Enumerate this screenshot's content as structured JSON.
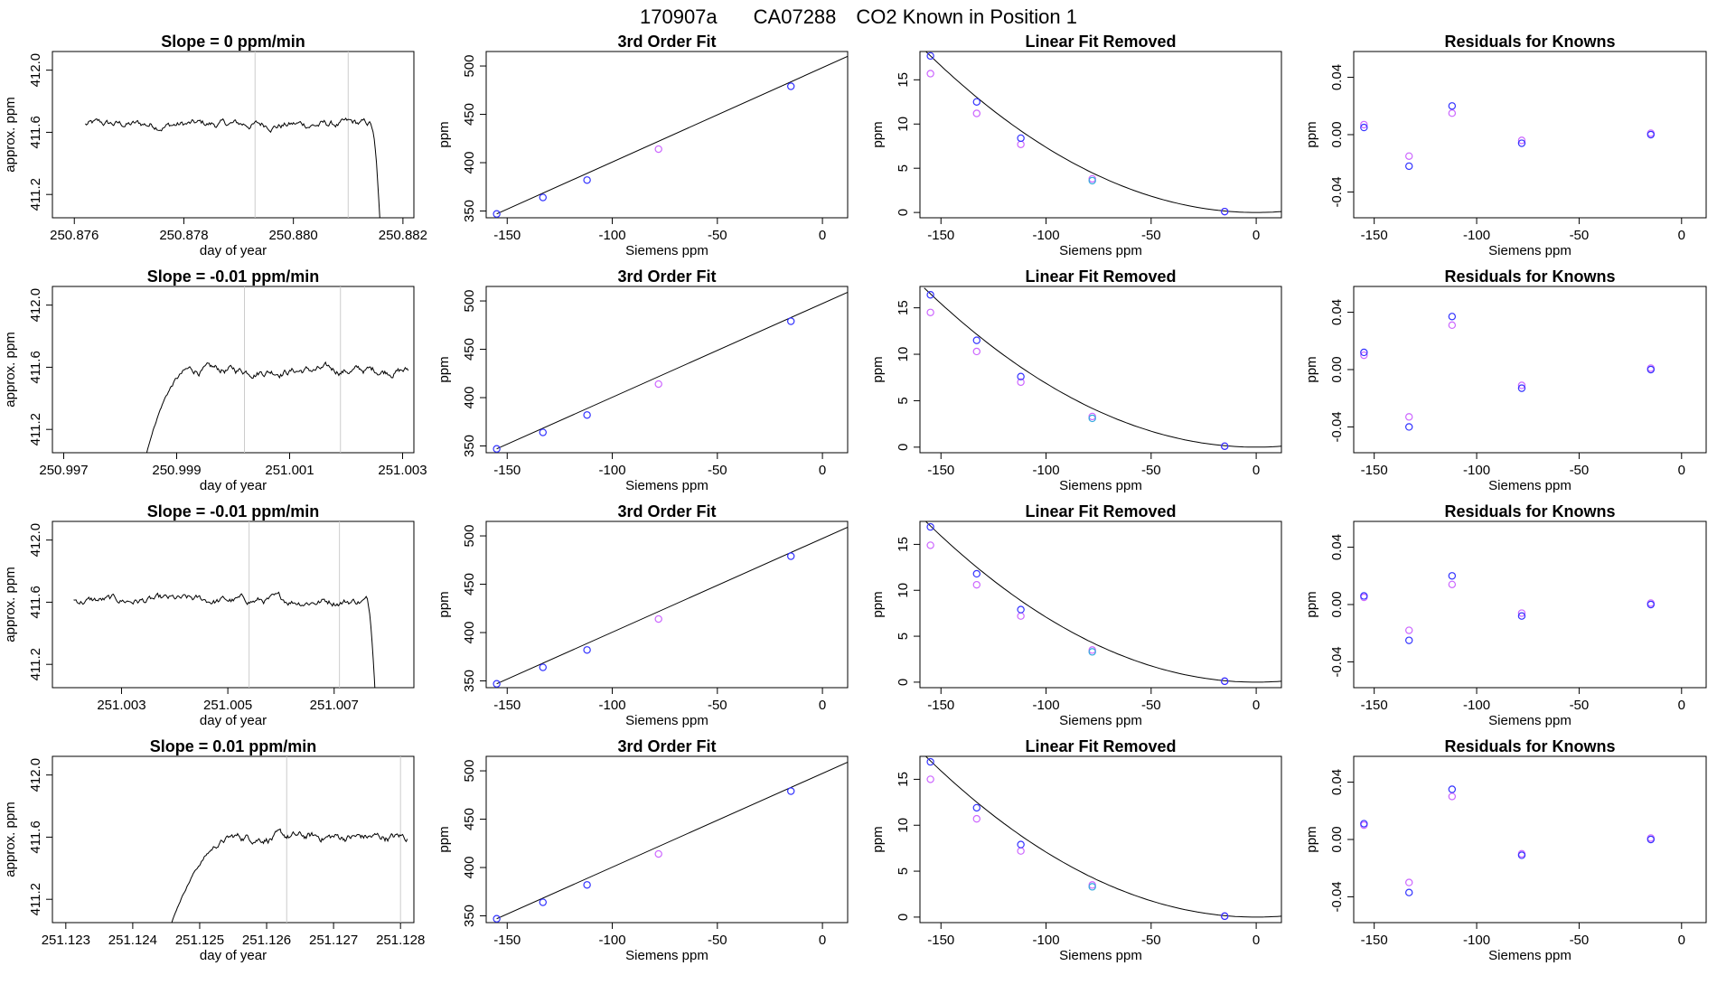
{
  "figure": {
    "title_id": "170907a",
    "title_tank": "CA07288",
    "title_desc": "CO2 Known in Position  1"
  },
  "colors": {
    "trace": "#000000",
    "gridline": "#cccccc",
    "fit_points": "#3333ff",
    "second_points": "#cc66ff",
    "cyan_point": "#33aadd",
    "red_blip": "#ff3333"
  },
  "chart_data": [
    {
      "type": "line",
      "row": 1,
      "title": "Slope =  0  ppm/min",
      "xlabel": "day of year",
      "ylabel": "approx. ppm",
      "xlim": [
        250.8756,
        250.8822
      ],
      "ylim": [
        411.05,
        412.12
      ],
      "xticks": [
        "250.876",
        "250.878",
        "250.880",
        "250.882"
      ],
      "xtick_values": [
        250.876,
        250.878,
        250.88,
        250.882
      ],
      "yticks": [
        "411.2",
        "411.6",
        "412.0"
      ],
      "ytick_values": [
        411.2,
        411.6,
        412.0
      ],
      "trace_start": 250.8762,
      "trace_end": 250.8816,
      "plateau": 411.65,
      "plateau_end": 250.8814,
      "shape": "drop-end",
      "vlines": [
        250.8793,
        250.881
      ]
    },
    {
      "type": "scatter",
      "row": 1,
      "title": "3rd Order Fit",
      "xlabel": "Siemens ppm",
      "ylabel": "ppm",
      "xlim": [
        -160,
        12
      ],
      "ylim": [
        343,
        515
      ],
      "xticks": [
        "-150",
        "-100",
        "-50",
        "0"
      ],
      "xtick_values": [
        -150,
        -100,
        -50,
        0
      ],
      "yticks": [
        "350",
        "400",
        "450",
        "500"
      ],
      "ytick_values": [
        350,
        400,
        450,
        500
      ],
      "fit": {
        "x0": -155,
        "x1": 12,
        "y0": 347,
        "y1": 510
      },
      "points": [
        {
          "x": -155,
          "y": 347
        },
        {
          "x": -133,
          "y": 364
        },
        {
          "x": -112,
          "y": 382
        },
        {
          "x": -78,
          "y": 414
        },
        {
          "x": -15,
          "y": 479
        }
      ]
    },
    {
      "type": "scatter",
      "row": 1,
      "title": "Linear Fit Removed",
      "xlabel": "Siemens ppm",
      "ylabel": "ppm",
      "xlim": [
        -160,
        12
      ],
      "ylim": [
        -0.6,
        18.2
      ],
      "xticks": [
        "-150",
        "-100",
        "-50",
        "0"
      ],
      "xtick_values": [
        -150,
        -100,
        -50,
        0
      ],
      "yticks": [
        "0",
        "5",
        "10",
        "15"
      ],
      "ytick_values": [
        0,
        5,
        10,
        15
      ],
      "curve": {
        "peak": 17.7,
        "zero_at": 0
      },
      "blue": [
        {
          "x": -155,
          "y": 17.7
        },
        {
          "x": -133,
          "y": 12.5
        },
        {
          "x": -112,
          "y": 8.4
        },
        {
          "x": -78,
          "y": 3.6
        },
        {
          "x": -15,
          "y": 0.1
        }
      ],
      "pink": [
        {
          "x": -155,
          "y": 15.7
        },
        {
          "x": -133,
          "y": 11.2
        },
        {
          "x": -112,
          "y": 7.7
        },
        {
          "x": -78,
          "y": 3.8
        },
        {
          "x": -15,
          "y": 0.1
        }
      ]
    },
    {
      "type": "scatter",
      "row": 1,
      "title": "Residuals for Knowns",
      "xlabel": "Siemens ppm",
      "ylabel": "ppm",
      "xlim": [
        -160,
        12
      ],
      "ylim": [
        -0.058,
        0.058
      ],
      "xticks": [
        "-150",
        "-100",
        "-50",
        "0"
      ],
      "xtick_values": [
        -150,
        -100,
        -50,
        0
      ],
      "yticks": [
        "-0.04",
        "0.00",
        "0.04"
      ],
      "ytick_values": [
        -0.04,
        0,
        0.04
      ],
      "blue": [
        {
          "x": -155,
          "y": 0.005
        },
        {
          "x": -133,
          "y": -0.022
        },
        {
          "x": -112,
          "y": 0.02
        },
        {
          "x": -78,
          "y": -0.006
        },
        {
          "x": -15,
          "y": 0.0
        }
      ],
      "pink": [
        {
          "x": -155,
          "y": 0.007
        },
        {
          "x": -133,
          "y": -0.015
        },
        {
          "x": -112,
          "y": 0.015
        },
        {
          "x": -78,
          "y": -0.004
        },
        {
          "x": -15,
          "y": 0.001
        }
      ]
    },
    {
      "type": "line",
      "row": 2,
      "title": "Slope =  -0.01  ppm/min",
      "xlabel": "day of year",
      "ylabel": "approx. ppm",
      "xlim": [
        250.9968,
        251.0032
      ],
      "ylim": [
        411.05,
        412.12
      ],
      "xticks": [
        "250.997",
        "250.999",
        "251.001",
        "251.003"
      ],
      "xtick_values": [
        250.997,
        250.999,
        251.001,
        251.003
      ],
      "yticks": [
        "411.2",
        "411.6",
        "412.0"
      ],
      "ytick_values": [
        411.2,
        411.6,
        412.0
      ],
      "trace_start": 250.9984,
      "trace_end": 251.0031,
      "plateau": 411.58,
      "rise_end": 250.9993,
      "shape": "rise-start",
      "vlines": [
        251.0002,
        251.0019
      ]
    },
    {
      "type": "scatter",
      "row": 2,
      "title": "3rd Order Fit",
      "xlabel": "Siemens ppm",
      "ylabel": "ppm",
      "xlim": [
        -160,
        12
      ],
      "ylim": [
        343,
        515
      ],
      "xticks": [
        "-150",
        "-100",
        "-50",
        "0"
      ],
      "xtick_values": [
        -150,
        -100,
        -50,
        0
      ],
      "yticks": [
        "350",
        "400",
        "450",
        "500"
      ],
      "ytick_values": [
        350,
        400,
        450,
        500
      ],
      "fit": {
        "x0": -155,
        "x1": 12,
        "y0": 347,
        "y1": 509
      },
      "points": [
        {
          "x": -155,
          "y": 347
        },
        {
          "x": -133,
          "y": 364
        },
        {
          "x": -112,
          "y": 382
        },
        {
          "x": -78,
          "y": 414
        },
        {
          "x": -15,
          "y": 479
        }
      ]
    },
    {
      "type": "scatter",
      "row": 2,
      "title": "Linear Fit Removed",
      "xlabel": "Siemens ppm",
      "ylabel": "ppm",
      "xlim": [
        -160,
        12
      ],
      "ylim": [
        -0.6,
        17.3
      ],
      "xticks": [
        "-150",
        "-100",
        "-50",
        "0"
      ],
      "xtick_values": [
        -150,
        -100,
        -50,
        0
      ],
      "yticks": [
        "0",
        "5",
        "10",
        "15"
      ],
      "ytick_values": [
        0,
        5,
        10,
        15
      ],
      "curve": {
        "peak": 16.5,
        "zero_at": 0
      },
      "blue": [
        {
          "x": -155,
          "y": 16.4
        },
        {
          "x": -133,
          "y": 11.5
        },
        {
          "x": -112,
          "y": 7.6
        },
        {
          "x": -78,
          "y": 3.1
        },
        {
          "x": -15,
          "y": 0.1
        }
      ],
      "pink": [
        {
          "x": -155,
          "y": 14.5
        },
        {
          "x": -133,
          "y": 10.3
        },
        {
          "x": -112,
          "y": 7.0
        },
        {
          "x": -78,
          "y": 3.3
        },
        {
          "x": -15,
          "y": 0.1
        }
      ]
    },
    {
      "type": "scatter",
      "row": 2,
      "title": "Residuals for Knowns",
      "xlabel": "Siemens ppm",
      "ylabel": "ppm",
      "xlim": [
        -160,
        12
      ],
      "ylim": [
        -0.058,
        0.058
      ],
      "xticks": [
        "-150",
        "-100",
        "-50",
        "0"
      ],
      "xtick_values": [
        -150,
        -100,
        -50,
        0
      ],
      "yticks": [
        "-0.04",
        "0.00",
        "0.04"
      ],
      "ytick_values": [
        -0.04,
        0,
        0.04
      ],
      "blue": [
        {
          "x": -155,
          "y": 0.012
        },
        {
          "x": -133,
          "y": -0.04
        },
        {
          "x": -112,
          "y": 0.037
        },
        {
          "x": -78,
          "y": -0.013
        },
        {
          "x": -15,
          "y": 0.0
        }
      ],
      "pink": [
        {
          "x": -155,
          "y": 0.01
        },
        {
          "x": -133,
          "y": -0.033
        },
        {
          "x": -112,
          "y": 0.031
        },
        {
          "x": -78,
          "y": -0.011
        },
        {
          "x": -15,
          "y": 0.001
        }
      ]
    },
    {
      "type": "line",
      "row": 3,
      "title": "Slope =  -0.01  ppm/min",
      "xlabel": "day of year",
      "ylabel": "approx. ppm",
      "xlim": [
        251.0017,
        251.0085
      ],
      "ylim": [
        411.05,
        412.12
      ],
      "xticks": [
        "251.003",
        "251.005",
        "251.007"
      ],
      "xtick_values": [
        251.003,
        251.005,
        251.007
      ],
      "yticks": [
        "411.2",
        "411.6",
        "412.0"
      ],
      "ytick_values": [
        411.2,
        411.6,
        412.0
      ],
      "trace_start": 251.0021,
      "trace_end": 251.0078,
      "plateau": 411.61,
      "plateau_end": 251.0076,
      "shape": "drop-end",
      "vlines": [
        251.0054,
        251.0071
      ]
    },
    {
      "type": "scatter",
      "row": 3,
      "title": "3rd Order Fit",
      "xlabel": "Siemens ppm",
      "ylabel": "ppm",
      "xlim": [
        -160,
        12
      ],
      "ylim": [
        343,
        515
      ],
      "xticks": [
        "-150",
        "-100",
        "-50",
        "0"
      ],
      "xtick_values": [
        -150,
        -100,
        -50,
        0
      ],
      "yticks": [
        "350",
        "400",
        "450",
        "500"
      ],
      "ytick_values": [
        350,
        400,
        450,
        500
      ],
      "fit": {
        "x0": -155,
        "x1": 12,
        "y0": 347,
        "y1": 509
      },
      "points": [
        {
          "x": -155,
          "y": 347
        },
        {
          "x": -133,
          "y": 364
        },
        {
          "x": -112,
          "y": 382
        },
        {
          "x": -78,
          "y": 414
        },
        {
          "x": -15,
          "y": 479
        }
      ]
    },
    {
      "type": "scatter",
      "row": 3,
      "title": "Linear Fit Removed",
      "xlabel": "Siemens ppm",
      "ylabel": "ppm",
      "xlim": [
        -160,
        12
      ],
      "ylim": [
        -0.6,
        17.5
      ],
      "xticks": [
        "-150",
        "-100",
        "-50",
        "0"
      ],
      "xtick_values": [
        -150,
        -100,
        -50,
        0
      ],
      "yticks": [
        "0",
        "5",
        "10",
        "15"
      ],
      "ytick_values": [
        0,
        5,
        10,
        15
      ],
      "curve": {
        "peak": 17.0,
        "zero_at": 0
      },
      "blue": [
        {
          "x": -155,
          "y": 16.9
        },
        {
          "x": -133,
          "y": 11.8
        },
        {
          "x": -112,
          "y": 7.9
        },
        {
          "x": -78,
          "y": 3.3
        },
        {
          "x": -15,
          "y": 0.1
        }
      ],
      "pink": [
        {
          "x": -155,
          "y": 14.9
        },
        {
          "x": -133,
          "y": 10.6
        },
        {
          "x": -112,
          "y": 7.2
        },
        {
          "x": -78,
          "y": 3.5
        },
        {
          "x": -15,
          "y": 0.1
        }
      ]
    },
    {
      "type": "scatter",
      "row": 3,
      "title": "Residuals for Knowns",
      "xlabel": "Siemens ppm",
      "ylabel": "ppm",
      "xlim": [
        -160,
        12
      ],
      "ylim": [
        -0.058,
        0.058
      ],
      "xticks": [
        "-150",
        "-100",
        "-50",
        "0"
      ],
      "xtick_values": [
        -150,
        -100,
        -50,
        0
      ],
      "yticks": [
        "-0.04",
        "0.00",
        "0.04"
      ],
      "ytick_values": [
        -0.04,
        0,
        0.04
      ],
      "blue": [
        {
          "x": -155,
          "y": 0.006
        },
        {
          "x": -133,
          "y": -0.025
        },
        {
          "x": -112,
          "y": 0.02
        },
        {
          "x": -78,
          "y": -0.008
        },
        {
          "x": -15,
          "y": 0.0
        }
      ],
      "pink": [
        {
          "x": -155,
          "y": 0.005
        },
        {
          "x": -133,
          "y": -0.018
        },
        {
          "x": -112,
          "y": 0.014
        },
        {
          "x": -78,
          "y": -0.006
        },
        {
          "x": -15,
          "y": 0.001
        }
      ]
    },
    {
      "type": "line",
      "row": 4,
      "title": "Slope =  0.01  ppm/min",
      "xlabel": "day of year",
      "ylabel": "approx. ppm",
      "xlim": [
        251.1228,
        251.1282
      ],
      "ylim": [
        411.05,
        412.12
      ],
      "xticks": [
        "251.123",
        "251.124",
        "251.125",
        "251.126",
        "251.127",
        "251.128"
      ],
      "xtick_values": [
        251.123,
        251.124,
        251.125,
        251.126,
        251.127,
        251.128
      ],
      "yticks": [
        "411.2",
        "411.6",
        "412.0"
      ],
      "ytick_values": [
        411.2,
        411.6,
        412.0
      ],
      "trace_start": 251.1245,
      "trace_end": 251.1281,
      "plateau": 411.6,
      "rise_end": 251.1256,
      "shape": "rise-start",
      "vlines": [
        251.1263,
        251.128
      ]
    },
    {
      "type": "scatter",
      "row": 4,
      "title": "3rd Order Fit",
      "xlabel": "Siemens ppm",
      "ylabel": "ppm",
      "xlim": [
        -160,
        12
      ],
      "ylim": [
        343,
        515
      ],
      "xticks": [
        "-150",
        "-100",
        "-50",
        "0"
      ],
      "xtick_values": [
        -150,
        -100,
        -50,
        0
      ],
      "yticks": [
        "350",
        "400",
        "450",
        "500"
      ],
      "ytick_values": [
        350,
        400,
        450,
        500
      ],
      "fit": {
        "x0": -155,
        "x1": 12,
        "y0": 347,
        "y1": 509
      },
      "points": [
        {
          "x": -155,
          "y": 347
        },
        {
          "x": -133,
          "y": 364
        },
        {
          "x": -112,
          "y": 382
        },
        {
          "x": -78,
          "y": 414
        },
        {
          "x": -15,
          "y": 479
        }
      ]
    },
    {
      "type": "scatter",
      "row": 4,
      "title": "Linear Fit Removed",
      "xlabel": "Siemens ppm",
      "ylabel": "ppm",
      "xlim": [
        -160,
        12
      ],
      "ylim": [
        -0.6,
        17.5
      ],
      "xticks": [
        "-150",
        "-100",
        "-50",
        "0"
      ],
      "xtick_values": [
        -150,
        -100,
        -50,
        0
      ],
      "yticks": [
        "0",
        "5",
        "10",
        "15"
      ],
      "ytick_values": [
        0,
        5,
        10,
        15
      ],
      "curve": {
        "peak": 17.0,
        "zero_at": 0
      },
      "blue": [
        {
          "x": -155,
          "y": 16.9
        },
        {
          "x": -133,
          "y": 11.9
        },
        {
          "x": -112,
          "y": 7.9
        },
        {
          "x": -78,
          "y": 3.3
        },
        {
          "x": -15,
          "y": 0.1
        }
      ],
      "pink": [
        {
          "x": -155,
          "y": 15.0
        },
        {
          "x": -133,
          "y": 10.7
        },
        {
          "x": -112,
          "y": 7.2
        },
        {
          "x": -78,
          "y": 3.5
        },
        {
          "x": -15,
          "y": 0.1
        }
      ]
    },
    {
      "type": "scatter",
      "row": 4,
      "title": "Residuals for Knowns",
      "xlabel": "Siemens ppm",
      "ylabel": "ppm",
      "xlim": [
        -160,
        12
      ],
      "ylim": [
        -0.058,
        0.058
      ],
      "xticks": [
        "-150",
        "-100",
        "-50",
        "0"
      ],
      "xtick_values": [
        -150,
        -100,
        -50,
        0
      ],
      "yticks": [
        "-0.04",
        "0.00",
        "0.04"
      ],
      "ytick_values": [
        -0.04,
        0,
        0.04
      ],
      "blue": [
        {
          "x": -155,
          "y": 0.011
        },
        {
          "x": -133,
          "y": -0.037
        },
        {
          "x": -112,
          "y": 0.035
        },
        {
          "x": -78,
          "y": -0.011
        },
        {
          "x": -15,
          "y": 0.0
        }
      ],
      "pink": [
        {
          "x": -155,
          "y": 0.01
        },
        {
          "x": -133,
          "y": -0.03
        },
        {
          "x": -112,
          "y": 0.03
        },
        {
          "x": -78,
          "y": -0.01
        },
        {
          "x": -15,
          "y": 0.001
        }
      ]
    }
  ]
}
